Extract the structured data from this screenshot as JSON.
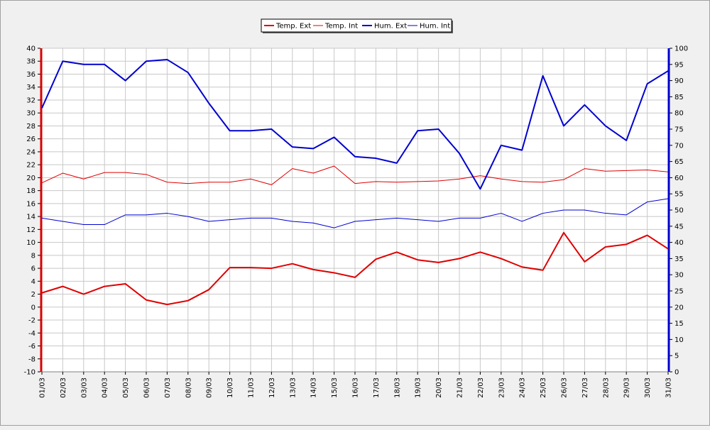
{
  "chart_data": {
    "type": "line",
    "categories": [
      "01/03",
      "02/03",
      "03/03",
      "04/03",
      "05/03",
      "06/03",
      "07/03",
      "08/03",
      "09/03",
      "10/03",
      "11/03",
      "12/03",
      "13/03",
      "14/03",
      "15/03",
      "16/03",
      "17/03",
      "18/03",
      "19/03",
      "20/03",
      "21/03",
      "22/03",
      "23/03",
      "24/03",
      "25/03",
      "26/03",
      "27/03",
      "28/03",
      "29/03",
      "30/03",
      "31/03"
    ],
    "y_left": {
      "min": -10,
      "max": 40,
      "step": 2
    },
    "y_right": {
      "min": 0,
      "max": 100,
      "step": 5
    },
    "grid": true,
    "legend_position": "top-center",
    "series": [
      {
        "name": "Temp. Ext",
        "axis": "left",
        "color": "#e00000",
        "width": 2,
        "values": [
          2.2,
          3.2,
          2.0,
          3.2,
          3.6,
          1.1,
          0.4,
          1.0,
          2.7,
          6.1,
          6.1,
          6.0,
          6.7,
          5.8,
          5.3,
          4.6,
          7.4,
          8.5,
          7.3,
          6.9,
          7.5,
          8.5,
          7.5,
          6.2,
          5.7,
          11.5,
          7.0,
          9.3,
          9.7,
          11.1,
          9.0
        ]
      },
      {
        "name": "Temp. Int",
        "axis": "left",
        "color": "#e00000",
        "width": 1,
        "values": [
          19.2,
          20.7,
          19.8,
          20.8,
          20.8,
          20.5,
          19.3,
          19.1,
          19.3,
          19.3,
          19.8,
          18.9,
          21.4,
          20.7,
          21.8,
          19.1,
          19.4,
          19.3,
          19.4,
          19.5,
          19.8,
          20.3,
          19.8,
          19.4,
          19.3,
          19.7,
          21.4,
          21.0,
          21.1,
          21.2,
          20.9
        ]
      },
      {
        "name": "Hum. Ext",
        "axis": "right",
        "color": "#0000d0",
        "width": 2,
        "values": [
          81.5,
          96.0,
          95.0,
          95.0,
          90.0,
          96.0,
          96.5,
          92.5,
          83.0,
          74.5,
          74.5,
          75.0,
          69.5,
          69.0,
          72.5,
          66.5,
          66.0,
          64.5,
          74.5,
          75.0,
          67.5,
          56.5,
          70.0,
          68.5,
          91.5,
          76.0,
          82.5,
          76.0,
          71.5,
          89.0,
          93.0
        ]
      },
      {
        "name": "Hum. Int",
        "axis": "right",
        "color": "#0000d0",
        "width": 1,
        "values": [
          47.5,
          46.5,
          45.5,
          45.5,
          48.5,
          48.5,
          49.0,
          48.0,
          46.5,
          47.0,
          47.5,
          47.5,
          46.5,
          46.0,
          44.5,
          46.5,
          47.0,
          47.5,
          47.0,
          46.5,
          47.5,
          47.5,
          49.0,
          46.5,
          49.0,
          50.0,
          50.0,
          49.0,
          48.5,
          52.5,
          53.5
        ]
      }
    ]
  }
}
